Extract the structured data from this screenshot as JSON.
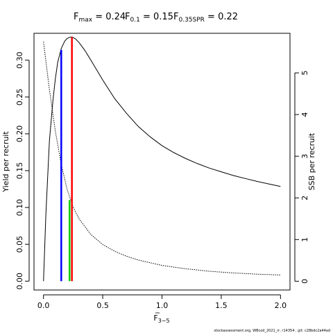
{
  "chart_data": {
    "type": "line",
    "title_parts": [
      {
        "main": "F",
        "sub": "max",
        "rest": " = 0.24"
      },
      {
        "main": "F",
        "sub": "0.1",
        "rest": " = 0.15"
      },
      {
        "main": "F",
        "sub": "0.35SPR",
        "rest": " = 0.22"
      }
    ],
    "xlabel": {
      "main": "F",
      "sub": "3−5"
    },
    "ylabel_left": "Yield per recruit",
    "ylabel_right": "SSB per recruit",
    "xlim": [
      -0.08,
      2.08
    ],
    "ylim_left": [
      -0.012,
      0.3365
    ],
    "ylim_right": [
      -0.21,
      5.95
    ],
    "x_ticks": [
      0.0,
      0.5,
      1.0,
      1.5,
      2.0
    ],
    "x_tick_labels": [
      "0.0",
      "0.5",
      "1.0",
      "1.5",
      "2.0"
    ],
    "y_left_ticks": [
      0.0,
      0.05,
      0.1,
      0.15,
      0.2,
      0.25,
      0.3
    ],
    "y_left_tick_labels": [
      "0.00",
      "0.05",
      "0.10",
      "0.15",
      "0.20",
      "0.25",
      "0.30"
    ],
    "y_right_ticks": [
      0,
      1,
      2,
      3,
      4,
      5
    ],
    "y_right_tick_labels": [
      "0",
      "1",
      "2",
      "3",
      "4",
      "5"
    ],
    "series": [
      {
        "axis": "left",
        "style": "solid",
        "color": "#000000",
        "x": [
          0,
          0.02,
          0.05,
          0.08,
          0.1,
          0.12,
          0.15,
          0.18,
          0.2,
          0.22,
          0.24,
          0.27,
          0.3,
          0.35,
          0.4,
          0.5,
          0.6,
          0.7,
          0.8,
          0.9,
          1.0,
          1.1,
          1.2,
          1.3,
          1.4,
          1.5,
          1.6,
          1.7,
          1.8,
          1.9,
          2.0
        ],
        "y": [
          0.0,
          0.09,
          0.19,
          0.245,
          0.275,
          0.297,
          0.316,
          0.326,
          0.3295,
          0.331,
          0.3315,
          0.329,
          0.324,
          0.313,
          0.3,
          0.273,
          0.248,
          0.228,
          0.21,
          0.196,
          0.184,
          0.1745,
          0.1665,
          0.1595,
          0.1535,
          0.1485,
          0.1435,
          0.1395,
          0.1355,
          0.132,
          0.1285
        ]
      },
      {
        "axis": "right",
        "style": "dotted",
        "color": "#000000",
        "x": [
          0,
          0.05,
          0.1,
          0.15,
          0.2,
          0.25,
          0.3,
          0.4,
          0.5,
          0.6,
          0.7,
          0.8,
          1.0,
          1.2,
          1.4,
          1.6,
          1.8,
          2.0
        ],
        "y": [
          5.75,
          4.6,
          3.6,
          2.8,
          2.2,
          1.78,
          1.5,
          1.12,
          0.88,
          0.72,
          0.6,
          0.51,
          0.38,
          0.3,
          0.24,
          0.2,
          0.17,
          0.15
        ]
      }
    ],
    "reference_lines": [
      {
        "name": "F0.1",
        "x": 0.15,
        "y": 0.314,
        "color": "#0000ff"
      },
      {
        "name": "F0.35SPR",
        "x": 0.22,
        "y": 0.11,
        "color": "#00cc00"
      },
      {
        "name": "Fmax",
        "x": 0.24,
        "y": 0.3315,
        "color": "#ff0000"
      }
    ],
    "footer_text": "stockassessment.org, WBcod_2021_rr, r14354 , git: c28bdc2a44ad"
  }
}
